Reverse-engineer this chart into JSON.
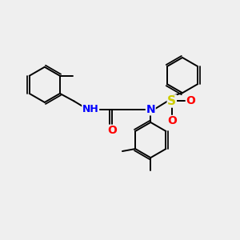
{
  "background_color": "#efefef",
  "atom_colors": {
    "C": "#000000",
    "N": "#0000ff",
    "O": "#ff0000",
    "S": "#cccc00"
  },
  "bond_color": "#000000",
  "bond_width": 1.4,
  "figsize": [
    3.0,
    3.0
  ],
  "dpi": 100
}
